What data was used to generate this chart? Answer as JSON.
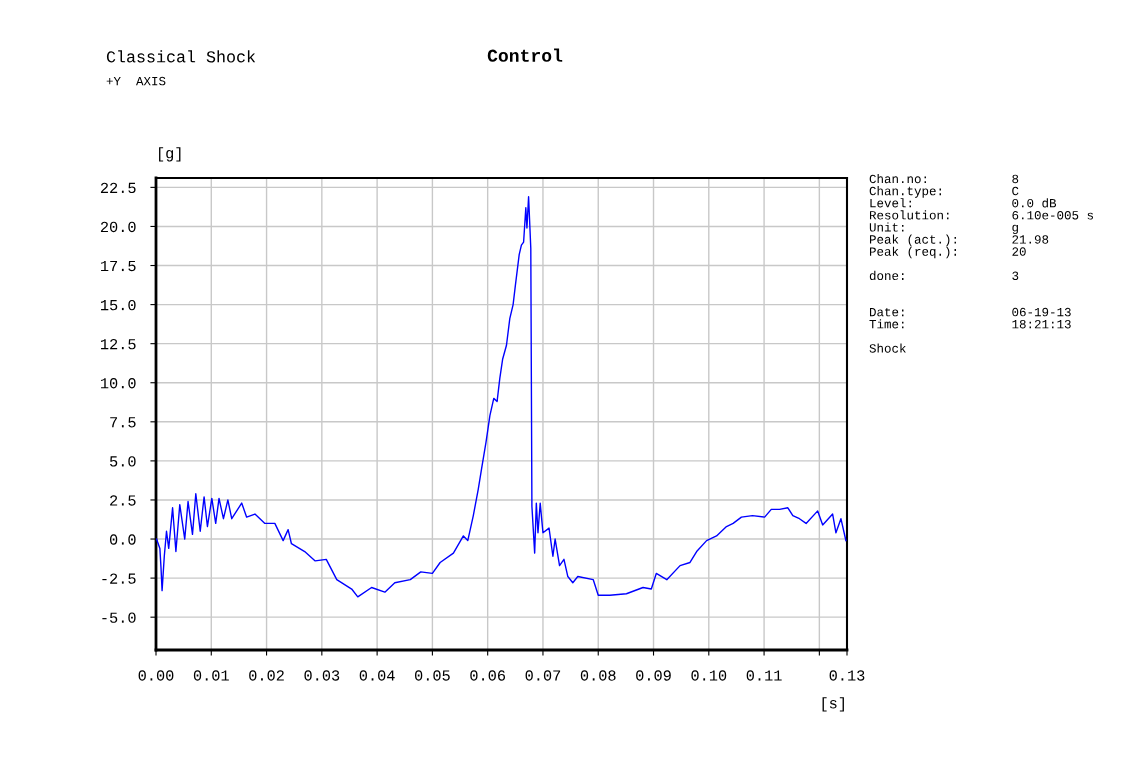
{
  "chart_data": {
    "type": "line",
    "title": "Control",
    "subtitle": "Classical Shock",
    "xlabel": "[s]",
    "ylabel": "[g]",
    "annotations": [
      "+Y  AXIS",
      "Chan.no:           8\nChan.type:         C\nLevel:             0.0 dB\nResolution:        6.10e-005 s\nUnit:              g\nPeak (act.):       21.98\nPeak (req.):       20\n\ndone:              3\n\n\nDate:              06-19-13\nTime:              18:21:13\n\nShock"
    ],
    "xlim": [
      0,
      0.125
    ],
    "ylim": [
      -7.1,
      23.1
    ],
    "xticks": [
      {
        "value": 0,
        "label": "0.00"
      },
      {
        "value": 0.01,
        "label": "0.01"
      },
      {
        "value": 0.02,
        "label": "0.02"
      },
      {
        "value": 0.03,
        "label": "0.03"
      },
      {
        "value": 0.04,
        "label": "0.04"
      },
      {
        "value": 0.05,
        "label": "0.05"
      },
      {
        "value": 0.06,
        "label": "0.06"
      },
      {
        "value": 0.07,
        "label": "0.07"
      },
      {
        "value": 0.08,
        "label": "0.08"
      },
      {
        "value": 0.09,
        "label": "0.09"
      },
      {
        "value": 0.1,
        "label": "0.10"
      },
      {
        "value": 0.11,
        "label": "0.11"
      },
      {
        "value": 0.12,
        "label": null
      },
      {
        "value": 0.125,
        "label": "0.13"
      }
    ],
    "yticks": [
      {
        "value": -5,
        "label": "-5.0"
      },
      {
        "value": -2.5,
        "label": "-2.5"
      },
      {
        "value": 0,
        "label": "0.0"
      },
      {
        "value": 2.5,
        "label": "2.5"
      },
      {
        "value": 5,
        "label": "5.0"
      },
      {
        "value": 7.5,
        "label": "7.5"
      },
      {
        "value": 10,
        "label": "10.0"
      },
      {
        "value": 12.5,
        "label": "12.5"
      },
      {
        "value": 15,
        "label": "15.0"
      },
      {
        "value": 17.5,
        "label": "17.5"
      },
      {
        "value": 20,
        "label": "20.0"
      },
      {
        "value": 22.5,
        "label": "22.5"
      }
    ],
    "grid": true,
    "marker": "none",
    "line_style": "solid",
    "series": [
      {
        "color": "#0000ff",
        "x": [
          0.0001,
          0.0007,
          0.0009,
          0.0011,
          0.0015,
          0.0019,
          0.0023,
          0.003,
          0.0036,
          0.0043,
          0.0052,
          0.0058,
          0.0066,
          0.0072,
          0.008,
          0.0087,
          0.0093,
          0.0101,
          0.0108,
          0.0114,
          0.0122,
          0.013,
          0.0137,
          0.0155,
          0.0164,
          0.0179,
          0.0197,
          0.0215,
          0.023,
          0.0239,
          0.0245,
          0.0269,
          0.0288,
          0.0308,
          0.0327,
          0.0354,
          0.0365,
          0.039,
          0.0414,
          0.0432,
          0.046,
          0.0479,
          0.05,
          0.0514,
          0.0538,
          0.0556,
          0.0564,
          0.0574,
          0.0583,
          0.0589,
          0.0597,
          0.0604,
          0.0611,
          0.0617,
          0.0622,
          0.0627,
          0.0634,
          0.064,
          0.0646,
          0.065,
          0.0657,
          0.0661,
          0.0665,
          0.0669,
          0.0671,
          0.0674,
          0.0678,
          0.068,
          0.0685,
          0.0688,
          0.0691,
          0.0695,
          0.07,
          0.0711,
          0.0718,
          0.0722,
          0.073,
          0.0738,
          0.0745,
          0.0754,
          0.0763,
          0.0791,
          0.08,
          0.0821,
          0.0851,
          0.0881,
          0.0896,
          0.0905,
          0.0924,
          0.0948,
          0.0966,
          0.0978,
          0.0996,
          0.1014,
          0.1032,
          0.1044,
          0.1059,
          0.1079,
          0.1101,
          0.1113,
          0.1128,
          0.1143,
          0.1152,
          0.1164,
          0.1176,
          0.1197,
          0.1206,
          0.1224,
          0.123,
          0.1239,
          0.1248
        ],
        "values": [
          0.0,
          -0.6,
          -1.8,
          -3.3,
          -1.1,
          0.5,
          -0.6,
          2.0,
          -0.8,
          2.2,
          0.0,
          2.4,
          0.3,
          2.9,
          0.5,
          2.7,
          0.8,
          2.6,
          1.0,
          2.6,
          1.3,
          2.5,
          1.3,
          2.3,
          1.4,
          1.6,
          1.0,
          1.0,
          -0.1,
          0.6,
          -0.3,
          -0.8,
          -1.4,
          -1.3,
          -2.6,
          -3.2,
          -3.7,
          -3.1,
          -3.4,
          -2.8,
          -2.6,
          -2.1,
          -2.2,
          -1.5,
          -0.9,
          0.2,
          -0.1,
          1.5,
          3.2,
          4.5,
          6.2,
          7.9,
          9.0,
          8.8,
          10.3,
          11.5,
          12.4,
          14.1,
          15.0,
          16.2,
          18.2,
          18.8,
          19.0,
          21.2,
          19.9,
          21.9,
          18.6,
          2.1,
          -0.9,
          2.3,
          0.4,
          2.3,
          0.4,
          0.7,
          -1.1,
          0.0,
          -1.7,
          -1.3,
          -2.4,
          -2.8,
          -2.4,
          -2.6,
          -3.6,
          -3.6,
          -3.5,
          -3.1,
          -3.2,
          -2.2,
          -2.6,
          -1.7,
          -1.5,
          -0.8,
          -0.1,
          0.2,
          0.8,
          1.0,
          1.4,
          1.5,
          1.4,
          1.9,
          1.9,
          2.0,
          1.5,
          1.3,
          1.0,
          1.8,
          0.9,
          1.6,
          0.4,
          1.3,
          -0.1
        ]
      }
    ]
  }
}
